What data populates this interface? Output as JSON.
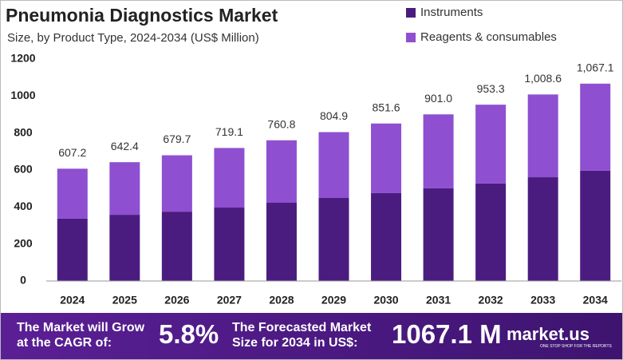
{
  "chart_data": {
    "type": "stacked-bar",
    "title": "Pneumonia Diagnostics Market",
    "subtitle": "Size, by Product Type, 2024-2034 (US$ Million)",
    "categories": [
      "2024",
      "2025",
      "2026",
      "2027",
      "2028",
      "2029",
      "2030",
      "2031",
      "2032",
      "2033",
      "2034"
    ],
    "series": [
      {
        "name": "Instruments",
        "color": "#4b1c80",
        "values": [
          337,
          358,
          375,
          397,
          423,
          449,
          475,
          501,
          527,
          561,
          596
        ]
      },
      {
        "name": "Reagents & consumables",
        "color": "#8e4fd0",
        "values": [
          270.2,
          284.4,
          304.7,
          322.1,
          337.8,
          355.9,
          376.6,
          400.0,
          426.3,
          447.6,
          471.1
        ]
      }
    ],
    "totals": [
      607.2,
      642.4,
      679.7,
      719.1,
      760.8,
      804.9,
      851.6,
      901.0,
      953.3,
      1008.6,
      1067.1
    ],
    "total_labels": [
      "607.2",
      "642.4",
      "679.7",
      "719.1",
      "760.8",
      "804.9",
      "851.6",
      "901.0",
      "953.3",
      "1,008.6",
      "1,067.1"
    ],
    "ylim": [
      0,
      1200
    ],
    "yticks": [
      0,
      200,
      400,
      600,
      800,
      1000,
      1200
    ],
    "grid": false,
    "legend": "top-right"
  },
  "footer": {
    "cagr_text": "The Market will Grow at the CAGR of:",
    "cagr": "5.8%",
    "forecast_text": "The Forecasted Market Size for 2034 in US$:",
    "forecast": "1067.1 M",
    "brand": "market.us",
    "tagline": "ONE STOP SHOP FOR THE REPORTS"
  }
}
